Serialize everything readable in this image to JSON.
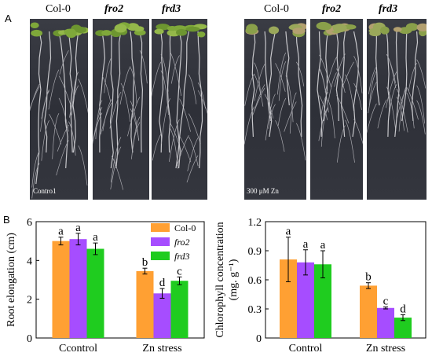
{
  "panel_a": {
    "letter": "A",
    "left_labels": [
      "Col-0",
      "fro2",
      "frd3"
    ],
    "right_labels": [
      "Col-0",
      "fro2",
      "frd3"
    ],
    "left_condition": "Contro1",
    "right_condition": "300 μM Zn"
  },
  "panel_b": {
    "letter": "B"
  },
  "chart_data": [
    {
      "type": "bar",
      "categories": [
        "Ccontrol",
        "Zn stress"
      ],
      "ylabel": "Root elongation (cm)",
      "ylim": [
        0,
        6
      ],
      "yticks": [
        0,
        2,
        4,
        6
      ],
      "legend_position": "top-right",
      "series": [
        {
          "name": "Col-0",
          "color": "#ffa033",
          "values": [
            5.0,
            3.45
          ],
          "errors": [
            0.2,
            0.15
          ],
          "letters": [
            "a",
            "b"
          ]
        },
        {
          "name": "fro2",
          "color": "#a64dff",
          "values": [
            5.1,
            2.3
          ],
          "errors": [
            0.3,
            0.25
          ],
          "letters": [
            "a",
            "d"
          ]
        },
        {
          "name": "frd3",
          "color": "#1fcc1f",
          "values": [
            4.6,
            2.95
          ],
          "errors": [
            0.3,
            0.2
          ],
          "letters": [
            "a",
            "c"
          ]
        }
      ]
    },
    {
      "type": "bar",
      "categories": [
        "Control",
        "Zn stress"
      ],
      "ylabel": "Chlorophyll concentration",
      "ylabel2": "(mg. g⁻¹)",
      "ylim": [
        0,
        1.2
      ],
      "yticks": [
        "0",
        "0.3",
        "0.6",
        "0.9",
        "1.2"
      ],
      "series": [
        {
          "name": "Col-0",
          "color": "#ffa033",
          "values": [
            0.81,
            0.54
          ],
          "errors": [
            0.23,
            0.03
          ],
          "letters": [
            "a",
            "b"
          ]
        },
        {
          "name": "fro2",
          "color": "#a64dff",
          "values": [
            0.78,
            0.31
          ],
          "errors": [
            0.13,
            0.01
          ],
          "letters": [
            "a",
            "c"
          ]
        },
        {
          "name": "frd3",
          "color": "#1fcc1f",
          "values": [
            0.76,
            0.21
          ],
          "errors": [
            0.14,
            0.03
          ],
          "letters": [
            "a",
            "d"
          ]
        }
      ]
    }
  ]
}
